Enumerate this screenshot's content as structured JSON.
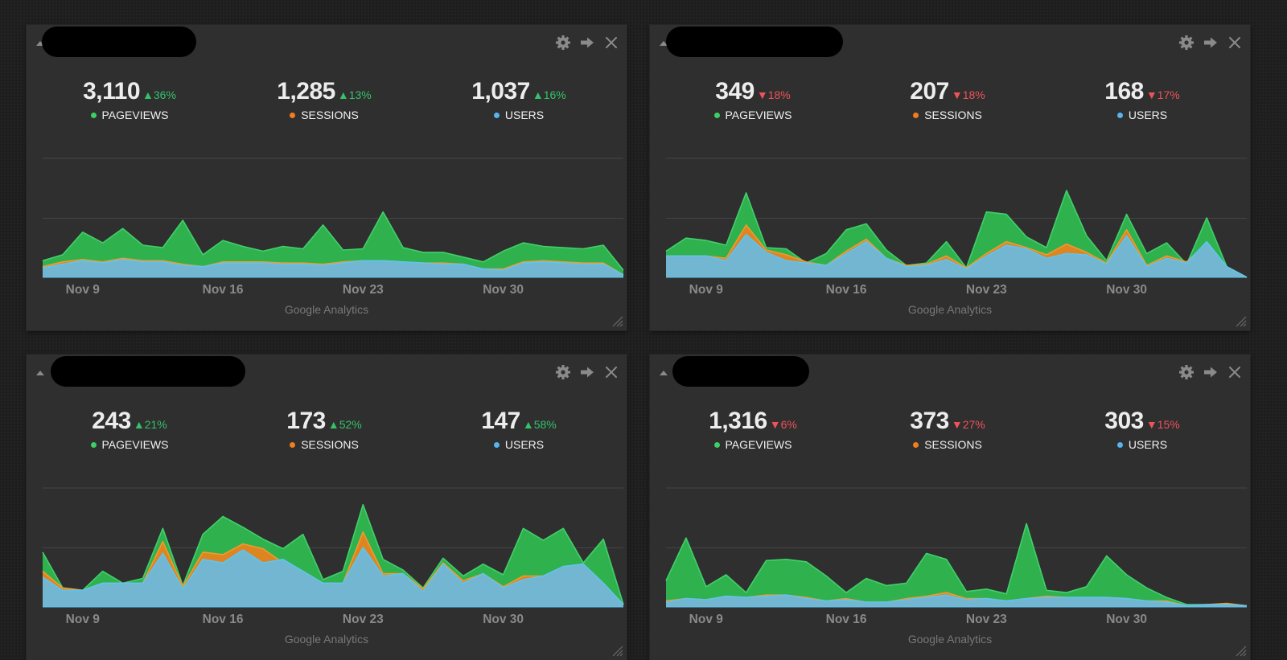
{
  "colors": {
    "pageviews": "#2fb14e",
    "sessions": "#dd8520",
    "users": "#73b6d1",
    "pageviews_dot": "#3ccf62",
    "sessions_dot": "#f07d1e",
    "users_dot": "#55b5ee",
    "up": "#34c26a",
    "down": "#f0525a"
  },
  "icons": {
    "collapse": "collapse-arrow-icon",
    "settings": "gear-icon",
    "open": "arrow-right-icon",
    "close": "close-icon",
    "resize": "resize-grip-icon"
  },
  "widgets": [
    {
      "footer": "Google Analytics",
      "metrics": [
        {
          "value": "3,110",
          "change": "36%",
          "direction": "up",
          "label": "PAGEVIEWS"
        },
        {
          "value": "1,285",
          "change": "13%",
          "direction": "up",
          "label": "SESSIONS"
        },
        {
          "value": "1,037",
          "change": "16%",
          "direction": "up",
          "label": "USERS"
        }
      ],
      "chart_data": {
        "type": "area",
        "x_labels": [
          "Nov 9",
          "Nov 16",
          "Nov 23",
          "Nov 30"
        ],
        "x_label_positions": [
          2,
          9,
          16,
          23
        ],
        "ylim": [
          0,
          100
        ],
        "series": [
          {
            "name": "PAGEVIEWS",
            "values": [
              14,
              19,
              38,
              29,
              41,
              27,
              25,
              48,
              19,
              31,
              26,
              22,
              26,
              24,
              44,
              23,
              24,
              55,
              25,
              21,
              21,
              17,
              13,
              22,
              29,
              26,
              25,
              24,
              27,
              6
            ]
          },
          {
            "name": "SESSIONS",
            "values": [
              9,
              13,
              15,
              13,
              16,
              14,
              14,
              11,
              9,
              13,
              13,
              13,
              12,
              12,
              11,
              13,
              14,
              14,
              13,
              12,
              12,
              11,
              7,
              7,
              13,
              14,
              13,
              12,
              12,
              2
            ]
          },
          {
            "name": "USERS",
            "values": [
              8,
              11,
              14,
              12,
              15,
              13,
              13,
              10,
              9,
              12,
              12,
              12,
              11,
              11,
              10,
              12,
              14,
              14,
              13,
              12,
              11,
              11,
              7,
              6,
              12,
              13,
              12,
              11,
              11,
              2
            ]
          }
        ]
      }
    },
    {
      "footer": "Google Analytics",
      "metrics": [
        {
          "value": "349",
          "change": "18%",
          "direction": "down",
          "label": "PAGEVIEWS"
        },
        {
          "value": "207",
          "change": "18%",
          "direction": "down",
          "label": "SESSIONS"
        },
        {
          "value": "168",
          "change": "17%",
          "direction": "down",
          "label": "USERS"
        }
      ],
      "chart_data": {
        "type": "area",
        "x_labels": [
          "Nov 9",
          "Nov 16",
          "Nov 23",
          "Nov 30"
        ],
        "x_label_positions": [
          2,
          9,
          16,
          23
        ],
        "ylim": [
          0,
          100
        ],
        "series": [
          {
            "name": "PAGEVIEWS",
            "values": [
              22,
              33,
              31,
              27,
              71,
              25,
              24,
              12,
              20,
              40,
              45,
              23,
              10,
              12,
              30,
              8,
              55,
              53,
              34,
              25,
              73,
              35,
              14,
              53,
              20,
              29,
              11,
              50,
              9,
              0
            ]
          },
          {
            "name": "SESSIONS",
            "values": [
              18,
              18,
              18,
              16,
              44,
              23,
              19,
              13,
              10,
              22,
              32,
              16,
              10,
              11,
              18,
              8,
              20,
              30,
              25,
              19,
              28,
              21,
              12,
              40,
              10,
              18,
              13,
              29,
              9,
              0
            ]
          },
          {
            "name": "USERS",
            "values": [
              18,
              18,
              18,
              14,
              36,
              21,
              14,
              12,
              10,
              20,
              30,
              16,
              9,
              10,
              15,
              7,
              18,
              27,
              24,
              16,
              20,
              19,
              11,
              35,
              9,
              16,
              12,
              30,
              9,
              0
            ]
          }
        ]
      }
    },
    {
      "footer": "Google Analytics",
      "metrics": [
        {
          "value": "243",
          "change": "21%",
          "direction": "up",
          "label": "PAGEVIEWS"
        },
        {
          "value": "173",
          "change": "52%",
          "direction": "up",
          "label": "SESSIONS"
        },
        {
          "value": "147",
          "change": "58%",
          "direction": "up",
          "label": "USERS"
        }
      ],
      "chart_data": {
        "type": "area",
        "x_labels": [
          "Nov 9",
          "Nov 16",
          "Nov 23",
          "Nov 30"
        ],
        "x_label_positions": [
          2,
          9,
          16,
          23
        ],
        "ylim": [
          0,
          100
        ],
        "series": [
          {
            "name": "PAGEVIEWS",
            "values": [
              46,
              16,
              14,
              30,
              20,
              24,
              66,
              18,
              61,
              76,
              67,
              57,
              49,
              61,
              23,
              30,
              86,
              40,
              31,
              16,
              41,
              26,
              36,
              27,
              66,
              56,
              66,
              37,
              57,
              2
            ]
          },
          {
            "name": "SESSIONS",
            "values": [
              30,
              16,
              14,
              20,
              20,
              20,
              55,
              17,
              46,
              44,
              53,
              49,
              37,
              30,
              20,
              20,
              63,
              28,
              28,
              15,
              37,
              22,
              28,
              17,
              26,
              26,
              34,
              36,
              20,
              2
            ]
          },
          {
            "name": "USERS",
            "values": [
              25,
              14,
              14,
              20,
              20,
              20,
              45,
              15,
              40,
              37,
              48,
              37,
              40,
              30,
              20,
              20,
              50,
              26,
              28,
              13,
              36,
              20,
              28,
              16,
              23,
              26,
              34,
              36,
              20,
              2
            ]
          }
        ]
      }
    },
    {
      "footer": "Google Analytics",
      "metrics": [
        {
          "value": "1,316",
          "change": "6%",
          "direction": "down",
          "label": "PAGEVIEWS"
        },
        {
          "value": "373",
          "change": "27%",
          "direction": "down",
          "label": "SESSIONS"
        },
        {
          "value": "303",
          "change": "15%",
          "direction": "down",
          "label": "USERS"
        }
      ],
      "chart_data": {
        "type": "area",
        "x_labels": [
          "Nov 9",
          "Nov 16",
          "Nov 23",
          "Nov 30"
        ],
        "x_label_positions": [
          2,
          9,
          16,
          23
        ],
        "ylim": [
          0,
          100
        ],
        "series": [
          {
            "name": "PAGEVIEWS",
            "values": [
              22,
              58,
              17,
              27,
              12,
              39,
              40,
              38,
              26,
              12,
              24,
              18,
              20,
              45,
              40,
              13,
              15,
              11,
              70,
              14,
              12,
              17,
              43,
              27,
              16,
              8,
              2,
              2,
              2,
              1
            ]
          },
          {
            "name": "SESSIONS",
            "values": [
              5,
              7,
              6,
              9,
              8,
              10,
              10,
              8,
              5,
              7,
              4,
              4,
              7,
              9,
              12,
              7,
              7,
              5,
              7,
              9,
              8,
              8,
              8,
              7,
              5,
              5,
              1,
              2,
              3,
              1
            ]
          },
          {
            "name": "USERS",
            "values": [
              4,
              7,
              6,
              9,
              8,
              9,
              10,
              7,
              5,
              6,
              4,
              4,
              6,
              8,
              10,
              6,
              7,
              5,
              7,
              8,
              8,
              8,
              8,
              7,
              5,
              4,
              1,
              2,
              2,
              1
            ]
          }
        ]
      }
    }
  ]
}
